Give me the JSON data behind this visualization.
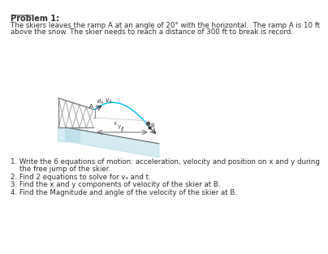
{
  "title": "Problem 1:",
  "description_line1": "The skiers leaves the ramp A at an angle of 20° with the horizontal.  The ramp A is 10 ft",
  "description_line2": "above the snow. The skier needs to reach a distance of 300 ft to break is record.",
  "questions": [
    "1. Write the 6 equations of motion: acceleration, velocity and position on x and y during",
    "    the free jump of the skier.",
    "2. Find 2 equations to solve for vₐ and t.",
    "3. Find the x and y components of velocity of the skier at B.",
    "4. Find the Magnitude and angle of the velocity of the skier at B."
  ],
  "bg_color": "#ffffff",
  "text_color": "#2f2f2f",
  "title_color": "#2f2f2f",
  "ramp_color": "#888888",
  "snow_color": "#add8e6",
  "truss_color": "#888888",
  "arc_color": "#00bfff",
  "label_color": "#555555"
}
